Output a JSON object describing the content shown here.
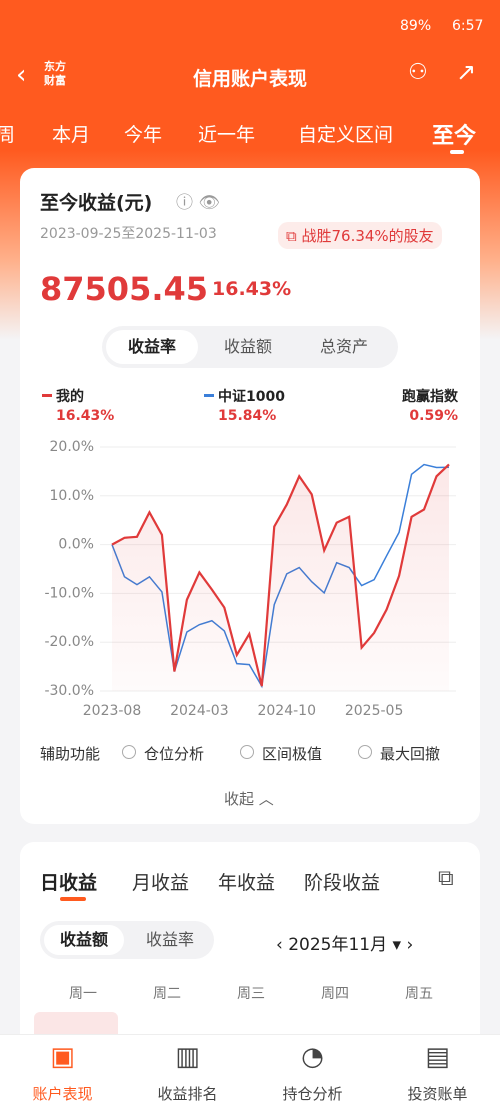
{
  "status_bar": {
    "battery": "89%",
    "time": "6:57"
  },
  "nav": {
    "logo": "东方财富",
    "title": "信用账户表现"
  },
  "tabs": {
    "items": [
      "周",
      "本月",
      "今年",
      "近一年",
      "自定义区间",
      "至今"
    ],
    "active": 5
  },
  "card": {
    "title": "至今收益(元)",
    "date_range": "2023-09-25至2025-11-03",
    "badge": "战胜76.34%的股友",
    "amount": "87505.45",
    "rate": "16.43%",
    "segments": [
      "收益率",
      "收益额",
      "总资产"
    ],
    "active_segment": 0,
    "legend_values": [
      "16.43%",
      "15.84%"
    ],
    "excess": {
      "name": "跑赢指数",
      "value": "0.59%"
    },
    "tools": {
      "label": "辅助功能",
      "options": [
        "仓位分析",
        "区间极值",
        "最大回撤"
      ]
    },
    "collapse": "收起"
  },
  "chart_data": {
    "type": "line",
    "x": [
      "2023-08",
      "2023-09",
      "2023-10",
      "2023-11",
      "2023-12",
      "2024-01",
      "2024-02",
      "2024-03",
      "2024-04",
      "2024-05",
      "2024-06",
      "2024-07",
      "2024-08",
      "2024-09",
      "2024-10",
      "2024-11",
      "2024-12",
      "2025-01",
      "2025-02",
      "2025-03",
      "2025-04",
      "2025-05",
      "2025-06",
      "2025-07",
      "2025-08",
      "2025-09",
      "2025-10",
      "2025-11"
    ],
    "series": [
      {
        "name": "我的",
        "color": "#e03a3a",
        "values": [
          0,
          1.4,
          1.6,
          6.6,
          2,
          -26,
          -11.3,
          -5.7,
          -9.2,
          -12.9,
          -22.6,
          -18.3,
          -29,
          3.7,
          8.2,
          14,
          10.3,
          -1.2,
          4.5,
          5.7,
          -21.1,
          -18.1,
          -13.3,
          -6.4,
          5.7,
          7.2,
          14,
          16.43
        ]
      },
      {
        "name": "中证1000",
        "color": "#3b7fd9",
        "values": [
          0,
          -6.6,
          -8.2,
          -6.6,
          -9.7,
          -26,
          -17.9,
          -16.4,
          -15.6,
          -17.7,
          -24.4,
          -24.6,
          -29,
          -12.3,
          -6,
          -4.7,
          -7.6,
          -9.9,
          -3.7,
          -4.7,
          -8.4,
          -7.2,
          -2.3,
          2.5,
          14.4,
          16.4,
          15.8,
          15.84
        ]
      }
    ],
    "xlim": [
      "2023-08",
      "2025-11"
    ],
    "xticks": [
      "2023-08",
      "2024-03",
      "2024-10",
      "2025-05"
    ],
    "ylim": [
      -30,
      20
    ],
    "yticks": [
      {
        "value": -30,
        "label": "-30.0%"
      },
      {
        "value": -20,
        "label": "-20.0%"
      },
      {
        "value": -10,
        "label": "-10.0%"
      },
      {
        "value": 0,
        "label": "0.0%"
      },
      {
        "value": 10,
        "label": "10.0%"
      },
      {
        "value": 20,
        "label": "20.0%"
      }
    ],
    "grid": true
  },
  "daily": {
    "tabs": [
      "日收益",
      "月收益",
      "年收益",
      "阶段收益"
    ],
    "active": 0,
    "toggle": [
      "收益额",
      "收益率"
    ],
    "month": "2025年11月",
    "weekdays": [
      "周一",
      "周二",
      "周三",
      "周四",
      "周五"
    ]
  },
  "bottom_nav": {
    "items": [
      "账户表现",
      "收益排名",
      "持仓分析",
      "投资账单"
    ],
    "active": 0
  }
}
